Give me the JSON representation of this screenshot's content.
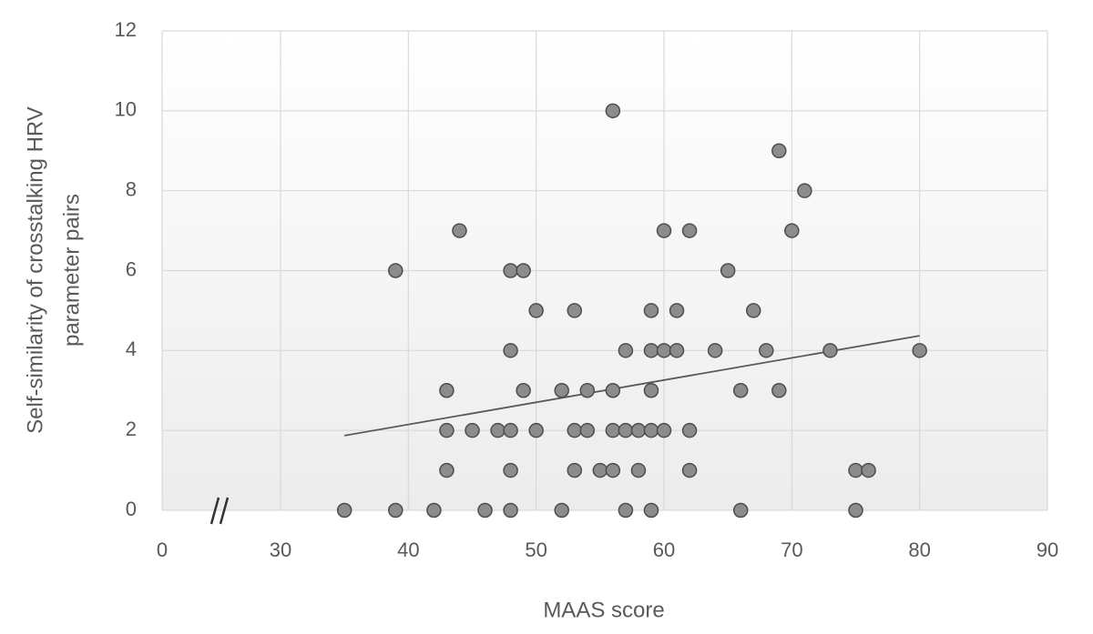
{
  "chart_data": {
    "type": "scatter",
    "x_label": "MAAS score",
    "y_label": [
      "Self-similarity of crosstalking HRV",
      "parameter pairs"
    ],
    "xlim": [
      0,
      90
    ],
    "xbreak": [
      0,
      30
    ],
    "xticks": [
      0,
      30,
      40,
      50,
      60,
      70,
      80,
      90
    ],
    "ylim": [
      0,
      12
    ],
    "yticks": [
      0,
      2,
      4,
      6,
      8,
      10,
      12
    ],
    "grid": true,
    "series": [
      {
        "color": "#8c8c8c",
        "x": [
          35,
          39,
          42,
          46,
          48,
          52,
          57,
          59,
          66,
          75,
          43,
          48,
          53,
          55,
          56,
          58,
          62,
          75,
          76,
          43,
          45,
          47,
          48,
          50,
          53,
          54,
          56,
          57,
          58,
          59,
          60,
          62,
          43,
          49,
          52,
          54,
          56,
          59,
          66,
          69,
          48,
          57,
          59,
          60,
          61,
          64,
          68,
          73,
          80,
          50,
          53,
          59,
          61,
          67,
          39,
          48,
          49,
          65,
          44,
          60,
          62,
          70,
          71,
          69,
          56
        ],
        "values": [
          0,
          0,
          0,
          0,
          0,
          0,
          0,
          0,
          0,
          0,
          1,
          1,
          1,
          1,
          1,
          1,
          1,
          1,
          1,
          2,
          2,
          2,
          2,
          2,
          2,
          2,
          2,
          2,
          2,
          2,
          2,
          2,
          3,
          3,
          3,
          3,
          3,
          3,
          3,
          3,
          4,
          4,
          4,
          4,
          4,
          4,
          4,
          4,
          4,
          5,
          5,
          5,
          5,
          5,
          6,
          6,
          6,
          6,
          7,
          7,
          7,
          7,
          8,
          9,
          10
        ]
      }
    ],
    "trendline": {
      "color": "#595959",
      "x": [
        35,
        80
      ],
      "values": [
        1.87,
        4.37
      ]
    }
  }
}
